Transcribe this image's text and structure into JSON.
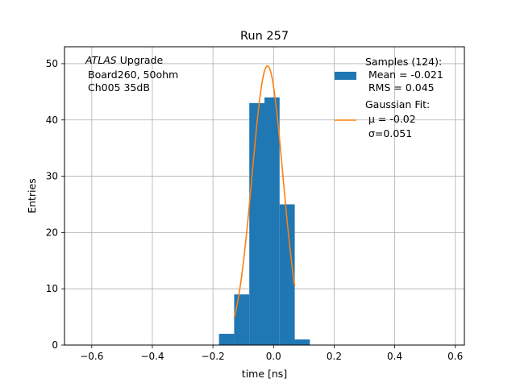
{
  "chart_data": {
    "type": "bar",
    "title": "Run 257",
    "xlabel": "time [ns]",
    "ylabel": "Entries",
    "xlim": [
      -0.69,
      0.63
    ],
    "ylim": [
      0,
      53
    ],
    "grid": true,
    "xticks": [
      -0.6,
      -0.4,
      -0.2,
      0.0,
      0.2,
      0.4,
      0.6
    ],
    "xtick_labels": [
      "−0.6",
      "−0.4",
      "−0.2",
      "0.0",
      "0.2",
      "0.4",
      "0.6"
    ],
    "yticks": [
      0,
      10,
      20,
      30,
      40,
      50
    ],
    "ytick_labels": [
      "0",
      "10",
      "20",
      "30",
      "40",
      "50"
    ],
    "histogram": {
      "name": "Samples (124):",
      "color": "#1f77b4",
      "bins": [
        {
          "x0": -0.18,
          "x1": -0.13,
          "count": 2
        },
        {
          "x0": -0.13,
          "x1": -0.08,
          "count": 9
        },
        {
          "x0": -0.08,
          "x1": -0.03,
          "count": 43
        },
        {
          "x0": -0.03,
          "x1": 0.02,
          "count": 44
        },
        {
          "x0": 0.02,
          "x1": 0.07,
          "count": 25
        },
        {
          "x0": 0.07,
          "x1": 0.12,
          "count": 1
        }
      ]
    },
    "fit": {
      "name": "Gaussian Fit:",
      "color": "#ff7f0e",
      "amplitude": 49.6,
      "mu": -0.02,
      "sigma": 0.051,
      "x_range": [
        -0.13,
        0.07
      ]
    },
    "annotation_lines": [
      "Upgrade",
      "Board260, 50ohm",
      "Ch005 35dB"
    ],
    "annotation_italic": "ATLAS",
    "legend_position": "top-right",
    "legend": [
      {
        "kind": "patch",
        "lines": [
          "Samples (124):",
          "Mean = -0.021",
          "RMS = 0.045"
        ]
      },
      {
        "kind": "line",
        "lines": [
          "Gaussian Fit:",
          "μ = -0.02",
          "σ=0.051"
        ]
      }
    ]
  }
}
